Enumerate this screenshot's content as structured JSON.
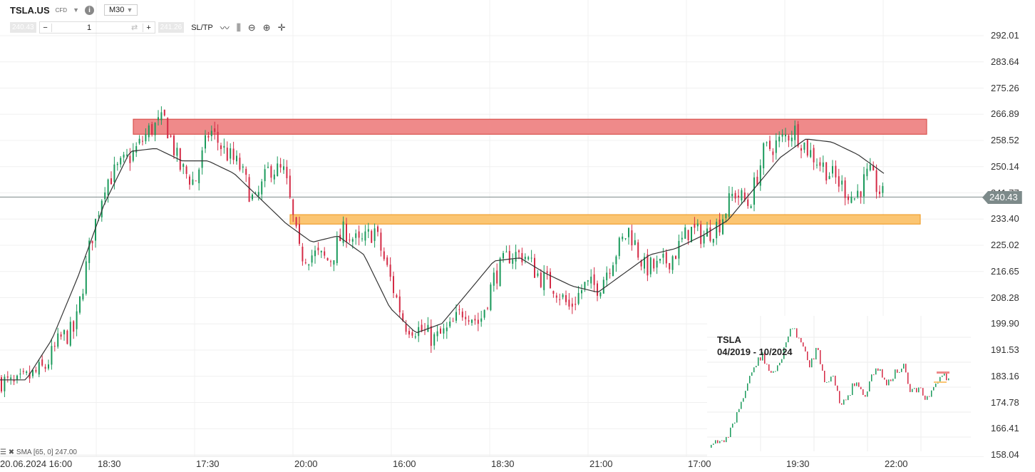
{
  "header": {
    "symbol": "TSLA.US",
    "instrument_type": "CFD",
    "timeframe": "M30",
    "sell_price": "240.43",
    "quantity": "1",
    "buy_price": "241.26",
    "sltp_label": "SL/TP"
  },
  "price_axis": [
    "292.01",
    "283.64",
    "275.26",
    "266.89",
    "258.52",
    "250.14",
    "241.77",
    "233.40",
    "225.02",
    "216.65",
    "208.28",
    "199.90",
    "191.53",
    "183.16",
    "174.78",
    "166.41",
    "158.04"
  ],
  "current_price": "240.43",
  "time_axis": [
    "20.06.2024 16:00",
    "18:30",
    "17:30",
    "20:00",
    "16:00",
    "18:30",
    "21:00",
    "17:00",
    "19:30",
    "22:00"
  ],
  "indicator": {
    "label": "SMA [65, 0] 247.00"
  },
  "inset": {
    "title": "TSLA\n04/2019 - 10/2024"
  },
  "colors": {
    "up": "#1a9a5b",
    "down": "#d42a45",
    "resistance_zone": "#ef8a8a",
    "support_zone": "#fbc572",
    "sma": "#333333",
    "price_line": "#7d8a8a"
  },
  "chart_data": {
    "type": "candlestick",
    "ylim": [
      158.04,
      292.01
    ],
    "close_path": [
      182,
      180,
      183,
      186,
      195,
      198,
      225,
      245,
      250,
      255,
      262,
      265,
      250,
      245,
      262,
      255,
      250,
      238,
      250,
      248,
      222,
      222,
      220,
      230,
      225,
      230,
      215,
      200,
      198,
      195,
      198,
      205,
      200,
      215,
      222,
      222,
      215,
      212,
      205,
      212,
      212,
      222,
      230,
      218,
      218,
      222,
      230,
      228,
      232,
      242,
      238,
      255,
      258,
      262,
      255,
      250,
      245,
      240,
      248,
      240
    ],
    "sma_path": [
      182,
      182,
      195,
      215,
      238,
      255,
      256,
      252,
      252,
      248,
      240,
      232,
      226,
      228,
      222,
      205,
      197,
      200,
      210,
      220,
      221,
      216,
      212,
      210,
      216,
      222,
      224,
      228,
      233,
      243,
      253,
      259,
      258,
      254,
      248
    ],
    "zones": [
      {
        "type": "resistance",
        "from": 260.5,
        "to": 265.3
      },
      {
        "type": "support",
        "from": 231.8,
        "to": 234.8
      }
    ]
  }
}
